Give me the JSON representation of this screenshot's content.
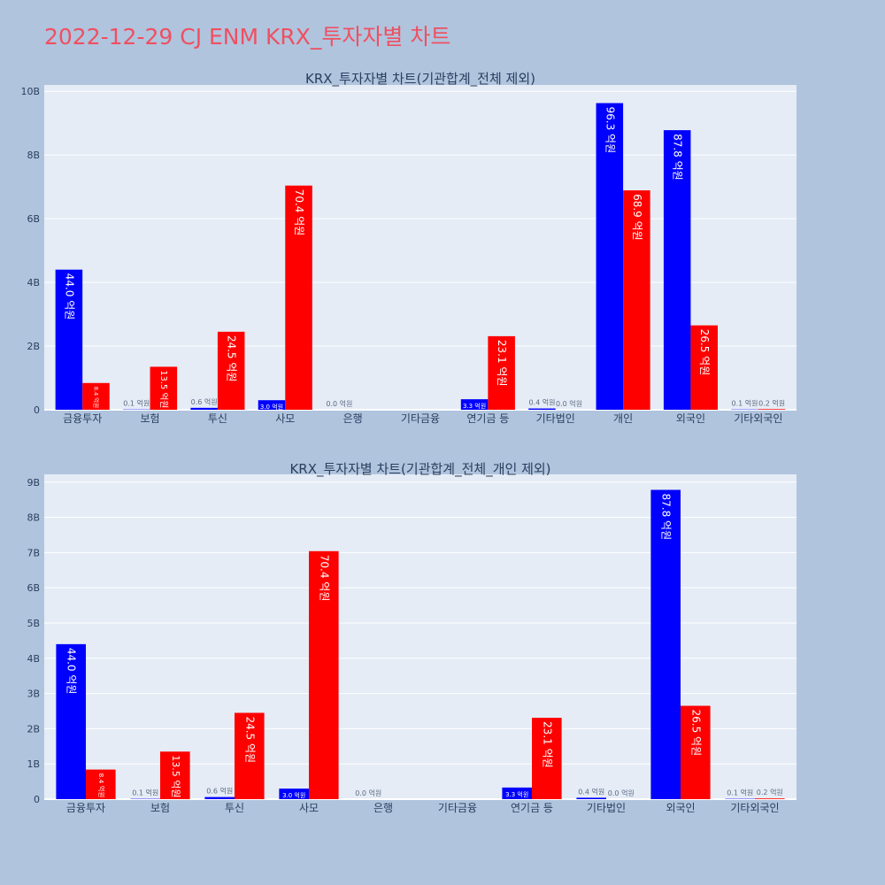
{
  "page_title": "2022-12-29 CJ ENM KRX_투자자별 차트",
  "colors": {
    "background": "#b0c4de",
    "plot_bg": "#e5ecf6",
    "title": "#ef5061",
    "series_buy": "#0000ff",
    "series_sell": "#ff0000"
  },
  "chart_data": [
    {
      "type": "bar",
      "title": "KRX_투자자별 차트(기관합계_전체 제외)",
      "categories": [
        "금융투자",
        "보험",
        "투신",
        "사모",
        "은행",
        "기타금융",
        "연기금 등",
        "기타법인",
        "개인",
        "외국인",
        "기타외국인"
      ],
      "series": [
        {
          "color": "#0000ff",
          "values": [
            4.4,
            0.01,
            0.06,
            0.3,
            0.0,
            null,
            0.33,
            0.04,
            9.63,
            8.78,
            0.01
          ],
          "labels": [
            "44.0 억원",
            "0.1 억원",
            "0.6 억원",
            "3.0 억원",
            "0.0 억원",
            "",
            "3.3 억원",
            "0.4 억원",
            "96.3 억원",
            "87.8 억원",
            "0.1 억원"
          ]
        },
        {
          "color": "#ff0000",
          "values": [
            0.84,
            1.35,
            2.45,
            7.04,
            null,
            null,
            2.31,
            0.0,
            6.89,
            2.65,
            0.02
          ],
          "labels": [
            "8.4 억원",
            "13.5 억원",
            "24.5 억원",
            "70.4 억원",
            "",
            "",
            "23.1 억원",
            "0.0 억원",
            "68.9 억원",
            "26.5 억원",
            "0.2 억원"
          ]
        }
      ],
      "ylim": [
        0,
        10.2
      ],
      "yticks": [
        0,
        2,
        4,
        6,
        8,
        10
      ],
      "ytick_labels": [
        "0",
        "2B",
        "4B",
        "6B",
        "8B",
        "10B"
      ],
      "grid": true
    },
    {
      "type": "bar",
      "title": "KRX_투자자별 차트(기관합계_전체_개인 제외)",
      "categories": [
        "금융투자",
        "보험",
        "투신",
        "사모",
        "은행",
        "기타금융",
        "연기금 등",
        "기타법인",
        "외국인",
        "기타외국인"
      ],
      "series": [
        {
          "color": "#0000ff",
          "values": [
            4.4,
            0.01,
            0.06,
            0.3,
            0.0,
            null,
            0.33,
            0.04,
            8.78,
            0.01
          ],
          "labels": [
            "44.0 억원",
            "0.1 억원",
            "0.6 억원",
            "3.0 억원",
            "0.0 억원",
            "",
            "3.3 억원",
            "0.4 억원",
            "87.8 억원",
            "0.1 억원"
          ]
        },
        {
          "color": "#ff0000",
          "values": [
            0.84,
            1.35,
            2.45,
            7.04,
            null,
            null,
            2.31,
            0.0,
            2.65,
            0.02
          ],
          "labels": [
            "8.4 억원",
            "13.5 억원",
            "24.5 억원",
            "70.4 억원",
            "",
            "",
            "23.1 억원",
            "0.0 억원",
            "26.5 억원",
            "0.2 억원"
          ]
        }
      ],
      "ylim": [
        0,
        9.22
      ],
      "yticks": [
        0,
        1,
        2,
        3,
        4,
        5,
        6,
        7,
        8,
        9
      ],
      "ytick_labels": [
        "0",
        "1B",
        "2B",
        "3B",
        "4B",
        "5B",
        "6B",
        "7B",
        "8B",
        "9B"
      ],
      "grid": true
    }
  ]
}
